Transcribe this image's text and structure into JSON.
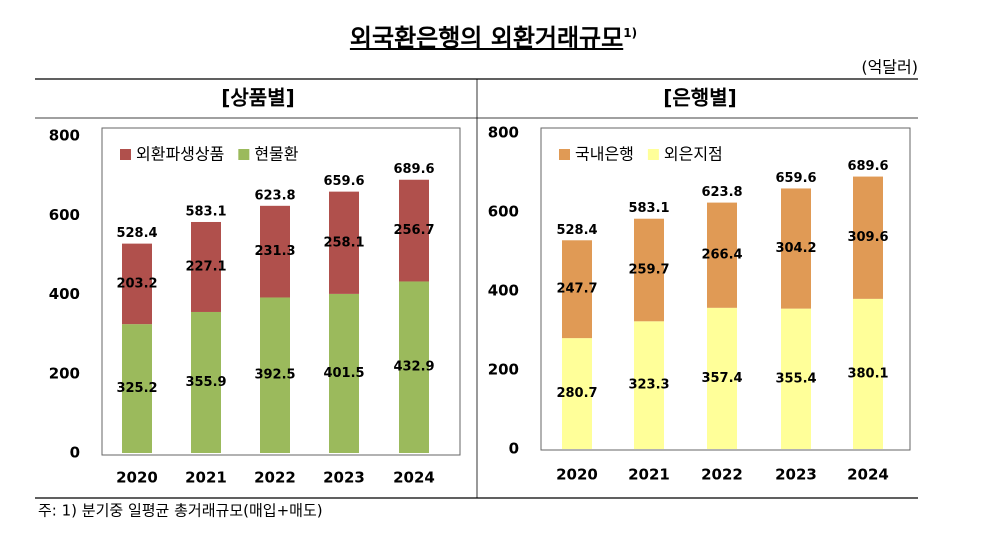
{
  "title": "외국환은행의 외환거래규모",
  "title_note": "1)",
  "unit": "(억달러)",
  "footnote": "주: 1) 분기중 일평균 총거래규모(매입+매도)",
  "chart_data": [
    {
      "type": "stacked-bar",
      "title": "[상품별]",
      "categories": [
        "2020",
        "2021",
        "2022",
        "2023",
        "2024"
      ],
      "series": [
        {
          "name": "외환파생상품",
          "color": "#b0504c",
          "values": [
            203.2,
            227.1,
            231.3,
            258.1,
            256.7
          ]
        },
        {
          "name": "현물환",
          "color": "#9bba5c",
          "values": [
            325.2,
            355.9,
            392.5,
            401.5,
            432.9
          ]
        }
      ],
      "totals": [
        528.4,
        583.1,
        623.8,
        659.6,
        689.6
      ],
      "ylim": [
        0,
        800
      ],
      "yticks": [
        0,
        200,
        400,
        600,
        800
      ],
      "grid": false
    },
    {
      "type": "stacked-bar",
      "title": "[은행별]",
      "categories": [
        "2020",
        "2021",
        "2022",
        "2023",
        "2024"
      ],
      "series": [
        {
          "name": "국내은행",
          "color": "#e09a55",
          "values": [
            247.7,
            259.7,
            266.4,
            304.2,
            309.6
          ]
        },
        {
          "name": "외은지점",
          "color": "#ffff99",
          "values": [
            280.7,
            323.3,
            357.4,
            355.4,
            380.1
          ]
        }
      ],
      "totals": [
        528.4,
        583.1,
        623.8,
        659.6,
        689.6
      ],
      "ylim": [
        0,
        800
      ],
      "yticks": [
        0,
        200,
        400,
        600,
        800
      ],
      "grid": false
    }
  ]
}
